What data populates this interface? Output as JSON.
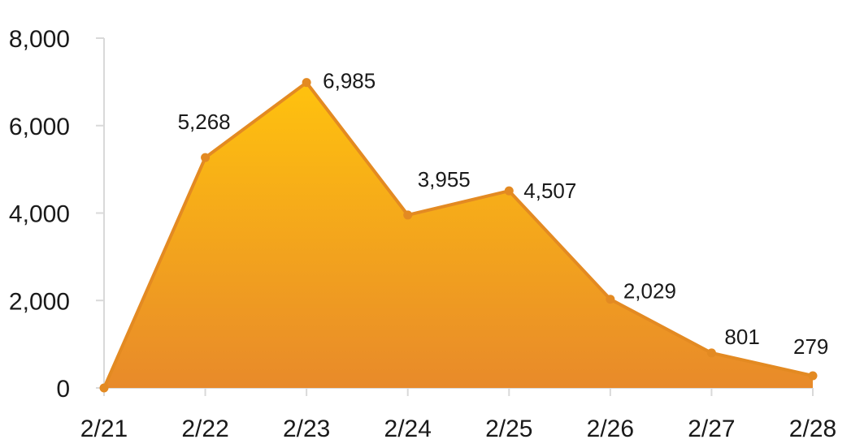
{
  "chart_data": {
    "type": "area",
    "categories": [
      "2/21",
      "2/22",
      "2/23",
      "2/24",
      "2/25",
      "2/26",
      "2/27",
      "2/28"
    ],
    "values": [
      0,
      5268,
      6985,
      3955,
      4507,
      2029,
      801,
      279
    ],
    "data_labels": [
      "",
      "5,268",
      "6,985",
      "3,955",
      "4,507",
      "2,029",
      "801",
      "279"
    ],
    "y_ticks": [
      0,
      2000,
      4000,
      6000,
      8000
    ],
    "y_tick_labels": [
      "0",
      "2,000",
      "4,000",
      "6,000",
      "8,000"
    ],
    "ylim": [
      0,
      8000
    ],
    "title": "",
    "xlabel": "",
    "ylabel": "",
    "grid": false,
    "legend": "none",
    "colors": {
      "line": "#e38a22",
      "fill_top": "#ffc20e",
      "fill_bottom": "#e88a2a",
      "axis": "#d9d9d9",
      "text": "#1a1a1a"
    }
  }
}
